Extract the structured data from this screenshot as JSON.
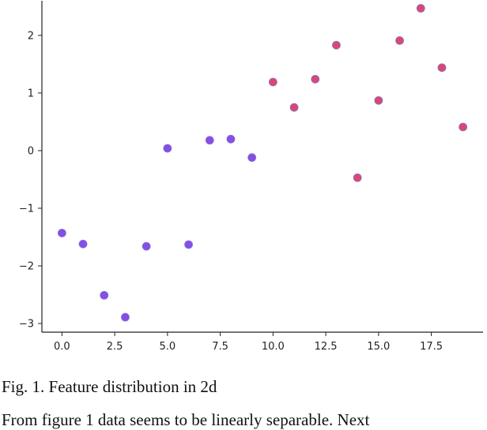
{
  "chart_data": {
    "type": "scatter",
    "title": "",
    "xlabel": "",
    "ylabel": "",
    "xlim": [
      -0.95,
      19.95
    ],
    "ylim": [
      -3.15,
      2.6
    ],
    "xticks": [
      0.0,
      2.5,
      5.0,
      7.5,
      10.0,
      12.5,
      15.0,
      17.5
    ],
    "xtick_labels": [
      "0.0",
      "2.5",
      "5.0",
      "7.5",
      "10.0",
      "12.5",
      "15.0",
      "17.5"
    ],
    "yticks": [
      -3,
      -2,
      -1,
      0,
      1,
      2
    ],
    "ytick_labels": [
      "−3",
      "−2",
      "−1",
      "0",
      "1",
      "2"
    ],
    "grid": false,
    "legend": null,
    "series": [
      {
        "color": "#7b3fe4",
        "points": [
          {
            "x": 0,
            "y": -1.43
          },
          {
            "x": 1,
            "y": -1.62
          },
          {
            "x": 2,
            "y": -2.51
          },
          {
            "x": 3,
            "y": -2.89
          },
          {
            "x": 4,
            "y": -1.66
          },
          {
            "x": 5,
            "y": 0.04
          },
          {
            "x": 6,
            "y": -1.63
          },
          {
            "x": 7,
            "y": 0.18
          },
          {
            "x": 8,
            "y": 0.2
          },
          {
            "x": 9,
            "y": -0.12
          }
        ]
      },
      {
        "color": "#d63a62",
        "points": [
          {
            "x": 10,
            "y": 1.19
          },
          {
            "x": 11,
            "y": 0.75
          },
          {
            "x": 12,
            "y": 1.24
          },
          {
            "x": 13,
            "y": 1.83
          },
          {
            "x": 14,
            "y": -0.47
          },
          {
            "x": 15,
            "y": 0.87
          },
          {
            "x": 16,
            "y": 1.91
          },
          {
            "x": 17,
            "y": 2.47
          },
          {
            "x": 18,
            "y": 1.44
          },
          {
            "x": 19,
            "y": 0.41
          }
        ]
      }
    ]
  },
  "caption": "Fig. 1. Feature distribution in 2d",
  "body_text": "From figure 1 data seems to be linearly separable. Next"
}
